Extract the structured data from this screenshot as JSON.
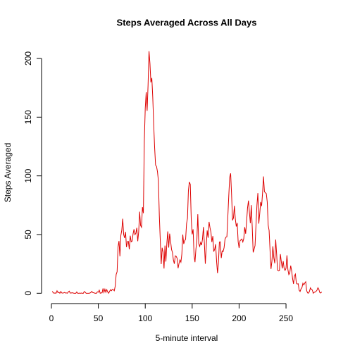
{
  "chart_data": {
    "type": "line",
    "title": "Steps Averaged Across All Days",
    "xlabel": "5-minute interval",
    "ylabel": "Steps Averaged",
    "xlim": [
      -10.5,
      299.5
    ],
    "ylim": [
      -8.2,
      214.4
    ],
    "xticks": [
      0,
      50,
      100,
      150,
      200,
      250
    ],
    "yticks": [
      0,
      50,
      100,
      150,
      200
    ],
    "x": [
      1,
      2,
      3,
      4,
      5,
      6,
      7,
      8,
      9,
      10,
      11,
      12,
      13,
      14,
      15,
      16,
      17,
      18,
      19,
      20,
      21,
      22,
      23,
      24,
      25,
      26,
      27,
      28,
      29,
      30,
      31,
      32,
      33,
      34,
      35,
      36,
      37,
      38,
      39,
      40,
      41,
      42,
      43,
      44,
      45,
      46,
      47,
      48,
      49,
      50,
      51,
      52,
      53,
      54,
      55,
      56,
      57,
      58,
      59,
      60,
      61,
      62,
      63,
      64,
      65,
      66,
      67,
      68,
      69,
      70,
      71,
      72,
      73,
      74,
      75,
      76,
      77,
      78,
      79,
      80,
      81,
      82,
      83,
      84,
      85,
      86,
      87,
      88,
      89,
      90,
      91,
      92,
      93,
      94,
      95,
      96,
      97,
      98,
      99,
      100,
      101,
      102,
      103,
      104,
      105,
      106,
      107,
      108,
      109,
      110,
      111,
      112,
      113,
      114,
      115,
      116,
      117,
      118,
      119,
      120,
      121,
      122,
      123,
      124,
      125,
      126,
      127,
      128,
      129,
      130,
      131,
      132,
      133,
      134,
      135,
      136,
      137,
      138,
      139,
      140,
      141,
      142,
      143,
      144,
      145,
      146,
      147,
      148,
      149,
      150,
      151,
      152,
      153,
      154,
      155,
      156,
      157,
      158,
      159,
      160,
      161,
      162,
      163,
      164,
      165,
      166,
      167,
      168,
      169,
      170,
      171,
      172,
      173,
      174,
      175,
      176,
      177,
      178,
      179,
      180,
      181,
      182,
      183,
      184,
      185,
      186,
      187,
      188,
      189,
      190,
      191,
      192,
      193,
      194,
      195,
      196,
      197,
      198,
      199,
      200,
      201,
      202,
      203,
      204,
      205,
      206,
      207,
      208,
      209,
      210,
      211,
      212,
      213,
      214,
      215,
      216,
      217,
      218,
      219,
      220,
      221,
      222,
      223,
      224,
      225,
      226,
      227,
      228,
      229,
      230,
      231,
      232,
      233,
      234,
      235,
      236,
      237,
      238,
      239,
      240,
      241,
      242,
      243,
      244,
      245,
      246,
      247,
      248,
      249,
      250,
      251,
      252,
      253,
      254,
      255,
      256,
      257,
      258,
      259,
      260,
      261,
      262,
      263,
      264,
      265,
      266,
      267,
      268,
      269,
      270,
      271,
      272,
      273,
      274,
      275,
      276,
      277,
      278,
      279,
      280,
      281,
      282,
      283,
      284,
      285,
      286,
      287,
      288
    ],
    "series": [
      {
        "color": "#dd0000",
        "values": [
          1.7,
          0.3,
          0.1,
          0.2,
          0.1,
          2.1,
          0.5,
          0.9,
          0,
          1.5,
          0.3,
          0.1,
          0.3,
          0.7,
          0.2,
          0.3,
          0,
          1.1,
          1.8,
          0.2,
          0.2,
          0.4,
          0.3,
          0,
          0,
          0,
          1.1,
          0,
          0,
          0.1,
          0,
          0.2,
          0,
          0,
          1.5,
          0.9,
          0,
          0,
          0,
          0,
          0.2,
          0.6,
          1.6,
          0.6,
          0.5,
          0.1,
          0,
          0,
          1.2,
          0.9,
          2.6,
          0,
          0.3,
          0.4,
          4.1,
          0.7,
          3.5,
          0.8,
          3.1,
          1.1,
          0,
          1.6,
          3,
          2.2,
          3.3,
          3,
          2.1,
          6.1,
          16,
          18.3,
          39.5,
          44.5,
          31.5,
          49.3,
          53.8,
          63.5,
          50,
          47.1,
          52.2,
          39.3,
          44,
          44.2,
          37.4,
          49,
          43.8,
          44.4,
          50.5,
          54.5,
          49.9,
          51,
          55.7,
          44.3,
          52.3,
          69.5,
          57.8,
          56.2,
          73.4,
          68.2,
          129.4,
          157.5,
          171.2,
          155.4,
          177.3,
          206.2,
          195.9,
          179.6,
          183.4,
          167,
          143.5,
          124,
          109.1,
          108.1,
          103.7,
          96,
          66.2,
          45.2,
          24.8,
          38.8,
          35,
          21.1,
          40.6,
          27,
          42.4,
          52.7,
          38.9,
          50.8,
          44.3,
          37.4,
          34.7,
          28.3,
          25.1,
          31.9,
          31.4,
          29.7,
          21.3,
          25.5,
          28.4,
          26.5,
          33.4,
          50,
          42,
          44.6,
          46,
          59.2,
          63.9,
          87.7,
          94.8,
          92.8,
          63.4,
          50.2,
          54.5,
          32.4,
          26.5,
          37.7,
          45.1,
          67.3,
          42.3,
          39.9,
          43.3,
          41,
          46.2,
          56.4,
          42.8,
          25.1,
          40,
          53.5,
          47.3,
          60.8,
          55.8,
          52,
          43.6,
          48.7,
          35.5,
          37.5,
          41.8,
          27.5,
          17.1,
          26.1,
          43.6,
          43.8,
          30,
          36.1,
          35.5,
          38.8,
          46,
          47.8,
          48.1,
          65.3,
          82.9,
          98.7,
          102.1,
          84,
          62.1,
          64.1,
          74.5,
          63.2,
          56.9,
          59.8,
          43.9,
          38.6,
          44.7,
          45.5,
          46.2,
          43.7,
          46.6,
          56.3,
          50.7,
          61.2,
          72.7,
          78.9,
          68.9,
          59.7,
          75.1,
          56.5,
          34.8,
          37.5,
          40.7,
          58,
          74.7,
          85.3,
          59.3,
          67.8,
          77.7,
          74.2,
          85.3,
          99.5,
          86.6,
          85.6,
          84.9,
          77.8,
          58,
          53.4,
          36.3,
          20.7,
          27.4,
          40,
          30.2,
          25.5,
          45.7,
          33.5,
          19.6,
          19,
          19.3,
          33.3,
          26.8,
          21.2,
          27.3,
          21.3,
          19.5,
          21.3,
          32.3,
          20.2,
          15.9,
          17.2,
          23.5,
          19.2,
          12.5,
          8,
          14.7,
          16.3,
          8.7,
          7.8,
          8.1,
          2.6,
          1.5,
          3.7,
          4.8,
          8.5,
          7.1,
          8.7,
          9.8,
          2.2,
          0.3,
          0.1,
          1.6,
          4.6,
          3.3,
          2.8,
          0,
          0.8,
          1,
          1.6,
          2.6,
          4.7,
          3.3,
          0.6,
          0.2,
          1.1
        ]
      }
    ]
  }
}
